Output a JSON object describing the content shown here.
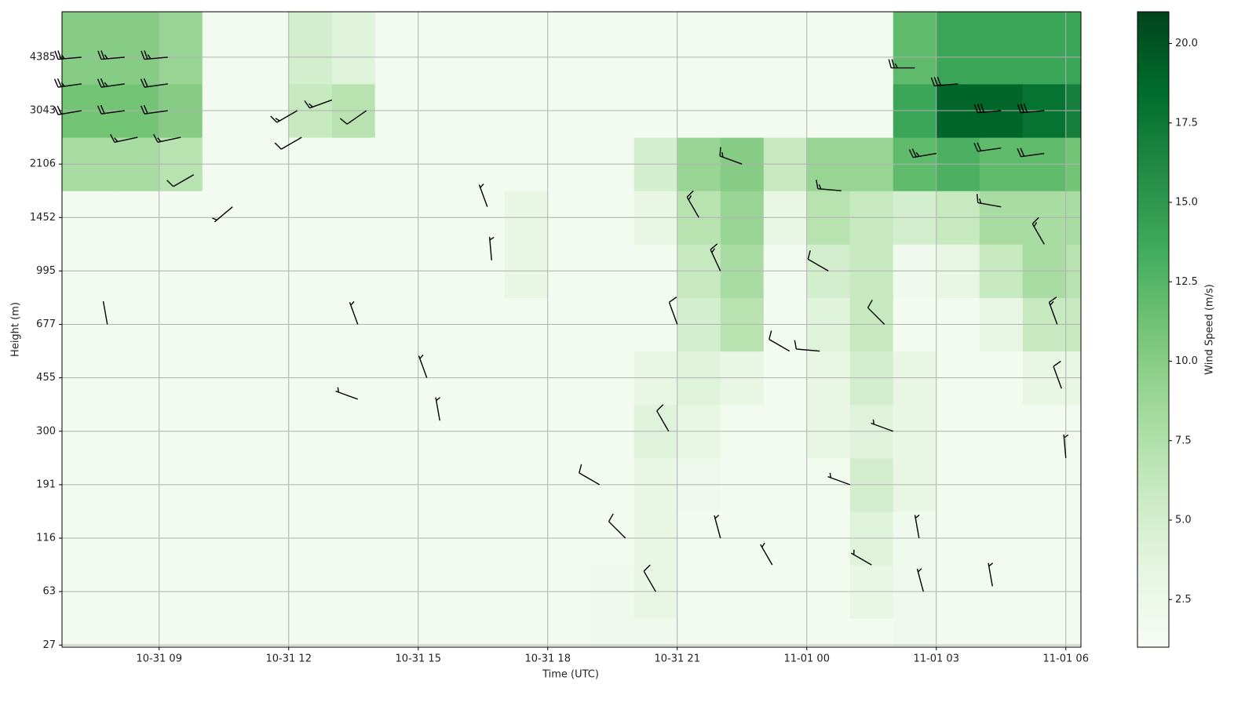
{
  "chart_data": {
    "type": "heatmap",
    "xlabel": "Time (UTC)",
    "ylabel": "Height (m)",
    "xlim": [
      6.75,
      30.35
    ],
    "ylim": [
      -0.04,
      11.85
    ],
    "xticks": [
      {
        "value": 9,
        "label": "10-31 09"
      },
      {
        "value": 12,
        "label": "10-31 12"
      },
      {
        "value": 15,
        "label": "10-31 15"
      },
      {
        "value": 18,
        "label": "10-31 18"
      },
      {
        "value": 21,
        "label": "10-31 21"
      },
      {
        "value": 24,
        "label": "11-01 00"
      },
      {
        "value": 27,
        "label": "11-01 03"
      },
      {
        "value": 30,
        "label": "11-01 06"
      }
    ],
    "yticks": [
      {
        "value": 0,
        "label": "27"
      },
      {
        "value": 1,
        "label": "63"
      },
      {
        "value": 2,
        "label": "116"
      },
      {
        "value": 3,
        "label": "191"
      },
      {
        "value": 4,
        "label": "300"
      },
      {
        "value": 5,
        "label": "455"
      },
      {
        "value": 6,
        "label": "677"
      },
      {
        "value": 7,
        "label": "995"
      },
      {
        "value": 8,
        "label": "1452"
      },
      {
        "value": 9,
        "label": "2106"
      },
      {
        "value": 10,
        "label": "3043"
      },
      {
        "value": 11,
        "label": "4385"
      }
    ],
    "grid": true,
    "x_edges": [
      6.75,
      8,
      9,
      10,
      11,
      12,
      13,
      14,
      15,
      16,
      17,
      18,
      19,
      20,
      21,
      22,
      23,
      24,
      25,
      26,
      27,
      28,
      29,
      30,
      30.35
    ],
    "y_edges": [
      -0.04,
      0.5,
      1.5,
      2.5,
      3.5,
      4.5,
      5.5,
      6.5,
      7.5,
      8.5,
      9.5,
      10.5,
      11.85
    ],
    "z": [
      [
        1.5,
        1.5,
        1.5,
        1.5,
        1.5,
        1.5,
        1.5,
        1.5,
        1.5,
        1.5,
        1.5,
        1.5,
        2,
        2,
        1.5,
        1.5,
        1.5,
        1.5,
        1.5,
        2,
        1.5,
        1.5,
        1.5,
        1.5
      ],
      [
        1.5,
        1.5,
        1.5,
        1.5,
        1.5,
        1.5,
        1.5,
        1.5,
        1.5,
        1.5,
        1.5,
        1.5,
        2,
        3,
        1.5,
        1.5,
        1.5,
        1.5,
        3,
        2,
        1.5,
        1.5,
        1.5,
        1.5
      ],
      [
        1.5,
        1.5,
        1.5,
        1.5,
        1.5,
        1.5,
        1.5,
        1.5,
        1.5,
        1.5,
        1.5,
        1.5,
        1.5,
        3,
        1.5,
        1.5,
        1.5,
        1.5,
        4,
        2,
        1.5,
        1.5,
        1.5,
        1.5
      ],
      [
        1.5,
        1.5,
        1.5,
        1.5,
        1.5,
        1.5,
        1.5,
        1.5,
        1.5,
        1.5,
        1.5,
        1.5,
        1.5,
        3,
        2,
        1.5,
        1.5,
        1.5,
        5,
        3,
        1.5,
        1.5,
        1.5,
        1.5
      ],
      [
        1.5,
        1.5,
        1.5,
        1.5,
        1.5,
        1.5,
        1.5,
        1.5,
        1.5,
        1.5,
        1.5,
        1.5,
        1.5,
        4,
        3,
        1.5,
        1.5,
        3,
        4,
        3,
        1.5,
        1.5,
        1.5,
        1.5
      ],
      [
        1.5,
        1.5,
        1.5,
        1.5,
        1.5,
        1.5,
        1.5,
        1.5,
        1.5,
        1.5,
        1.5,
        1.5,
        1.5,
        3,
        4,
        3,
        1.5,
        3,
        5,
        3,
        1.5,
        1.5,
        3,
        3
      ],
      [
        1.5,
        1.5,
        1.5,
        1.5,
        1.5,
        1.5,
        1.5,
        1.5,
        1.5,
        1.5,
        1.5,
        1.5,
        1.5,
        1.5,
        5,
        7,
        1.5,
        4,
        6,
        1.5,
        1.5,
        3,
        6,
        6
      ],
      [
        1.5,
        1.5,
        1.5,
        1.5,
        1.5,
        1.5,
        1.5,
        1.5,
        1.5,
        1.5,
        3,
        1.5,
        1.5,
        1.5,
        6,
        8,
        1.5,
        5,
        6,
        2,
        3,
        6,
        8,
        7
      ],
      [
        1.5,
        1.5,
        1.5,
        1.5,
        1.5,
        1.5,
        1.5,
        1.5,
        1.5,
        1.5,
        3,
        1.5,
        1.5,
        3,
        7,
        9,
        3,
        7,
        6,
        5,
        6,
        8,
        8,
        8
      ],
      [
        8,
        8,
        7,
        1.5,
        1.5,
        1.5,
        1.5,
        1.5,
        1.5,
        1.5,
        1.5,
        1.5,
        1.5,
        5,
        9,
        10,
        6,
        9,
        9,
        12,
        13,
        12,
        12,
        11
      ],
      [
        11,
        11,
        10,
        1.5,
        1.5,
        6,
        7,
        1.5,
        1.5,
        1.5,
        1.5,
        1.5,
        1.5,
        1.5,
        1.5,
        1.5,
        1.5,
        1.5,
        1.5,
        14,
        19,
        19,
        18,
        17
      ],
      [
        10,
        10,
        9,
        1.5,
        1.5,
        5,
        4,
        1.5,
        1.5,
        1.5,
        1.5,
        1.5,
        1.5,
        1.5,
        1.5,
        1.5,
        1.5,
        1.5,
        1.5,
        12,
        14,
        14,
        14,
        14
      ]
    ],
    "barbs": {
      "x": [
        7.2,
        8.2,
        9.2,
        7.2,
        8.2,
        9.2,
        7.2,
        8.2,
        9.2,
        8.5,
        9.5,
        9.8,
        12.2,
        13,
        13.8,
        12.3,
        10.7,
        7.8,
        13.6,
        13.6,
        15.2,
        15.5,
        16.6,
        16.7,
        19.2,
        19.8,
        20.5,
        20.8,
        21,
        21.5,
        22,
        22.5,
        22,
        23.2,
        23.6,
        24.3,
        24.5,
        24.8,
        25,
        25.5,
        25.8,
        26,
        26.6,
        26.7,
        26.5,
        27.5,
        28.5,
        29.5,
        27,
        28.5,
        29.5,
        28.5,
        29.5,
        29.8,
        29.9,
        30,
        28.3
      ],
      "y": [
        11,
        11,
        11,
        10.5,
        10.5,
        10.5,
        10,
        10,
        10,
        9.5,
        9.5,
        8.8,
        10,
        10.2,
        10,
        9.5,
        8.2,
        6,
        6,
        4.6,
        5,
        4.2,
        8.2,
        7.2,
        3,
        2,
        1,
        4,
        6,
        8,
        7,
        9,
        2,
        1.5,
        5.5,
        5.5,
        7,
        8.5,
        3,
        1.5,
        6,
        4,
        2,
        1,
        10.8,
        10.5,
        10,
        10,
        9.2,
        9.3,
        9.2,
        8.2,
        7.5,
        6,
        4.8,
        3.5,
        1.1
      ],
      "speed": [
        14,
        14,
        13,
        13,
        13,
        12,
        12,
        12,
        11,
        10,
        9,
        6,
        8,
        8,
        7,
        6,
        5,
        2,
        3,
        3,
        3,
        3,
        4,
        3,
        6,
        7,
        6,
        6,
        7,
        9,
        9,
        10,
        4,
        4,
        6,
        6,
        7,
        9,
        5,
        5,
        6,
        5,
        5,
        4,
        14,
        18,
        18,
        17,
        14,
        12,
        12,
        10,
        9,
        8,
        6,
        4,
        4
      ],
      "direction": [
        265,
        265,
        265,
        262,
        262,
        262,
        260,
        262,
        262,
        258,
        258,
        240,
        240,
        250,
        235,
        240,
        230,
        350,
        340,
        290,
        340,
        350,
        340,
        355,
        300,
        315,
        330,
        330,
        340,
        330,
        335,
        290,
        345,
        330,
        300,
        275,
        300,
        275,
        290,
        300,
        315,
        290,
        350,
        345,
        270,
        265,
        265,
        265,
        260,
        262,
        262,
        280,
        330,
        340,
        340,
        355,
        350
      ]
    },
    "colorbar": {
      "label": "Wind Speed (m/s)",
      "colormap": "Greens",
      "lim": [
        1,
        21
      ],
      "ticks": [
        {
          "value": 2.5,
          "label": "2.5"
        },
        {
          "value": 5,
          "label": "5.0"
        },
        {
          "value": 7.5,
          "label": "7.5"
        },
        {
          "value": 10,
          "label": "10.0"
        },
        {
          "value": 12.5,
          "label": "12.5"
        },
        {
          "value": 15,
          "label": "15.0"
        },
        {
          "value": 17.5,
          "label": "17.5"
        },
        {
          "value": 20,
          "label": "20.0"
        }
      ]
    }
  }
}
